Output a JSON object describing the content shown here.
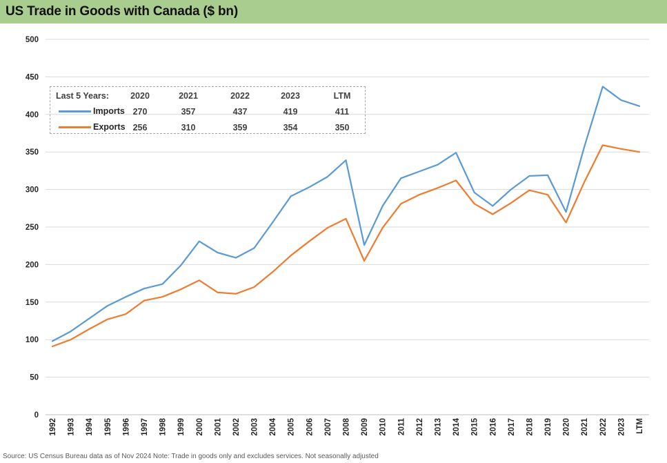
{
  "header": {
    "title": "US Trade in Goods with Canada ($ bn)"
  },
  "footer": {
    "source_note": "Source: US Census Bureau data as of Nov 2024 Note: Trade in goods only and excludes services. Not seasonally adjusted"
  },
  "colors": {
    "header_bg": "#A9CD8E",
    "imports": "#5B9BD5",
    "exports": "#ED7D31",
    "gridline": "#D9D9D9",
    "zero_line": "#BFBFBF",
    "axis_text": "#262626",
    "legend_text": "#3F3F3F"
  },
  "legend": {
    "heading": "Last 5 Years:",
    "columns": [
      "2020",
      "2021",
      "2022",
      "2023",
      "LTM"
    ],
    "rows": [
      {
        "label": "Imports",
        "values": [
          "270",
          "357",
          "437",
          "419",
          "411"
        ]
      },
      {
        "label": "Exports",
        "values": [
          "256",
          "310",
          "359",
          "354",
          "350"
        ]
      }
    ]
  },
  "chart_data": {
    "type": "line",
    "title": "US Trade in Goods with Canada ($ bn)",
    "categories": [
      "1992",
      "1993",
      "1994",
      "1995",
      "1996",
      "1997",
      "1998",
      "1999",
      "2000",
      "2001",
      "2002",
      "2003",
      "2004",
      "2005",
      "2006",
      "2007",
      "2008",
      "2009",
      "2010",
      "2011",
      "2012",
      "2013",
      "2014",
      "2015",
      "2016",
      "2017",
      "2018",
      "2019",
      "2020",
      "2021",
      "2022",
      "2023",
      "LTM"
    ],
    "series": [
      {
        "name": "Imports",
        "color": "#5B9BD5",
        "values": [
          98,
          111,
          128,
          145,
          157,
          168,
          174,
          199,
          231,
          216,
          209,
          222,
          256,
          291,
          303,
          317,
          339,
          226,
          278,
          315,
          324,
          333,
          349,
          296,
          278,
          300,
          318,
          319,
          270,
          357,
          437,
          419,
          411
        ]
      },
      {
        "name": "Exports",
        "color": "#ED7D31",
        "values": [
          91,
          100,
          114,
          127,
          134,
          152,
          157,
          167,
          179,
          163,
          161,
          170,
          190,
          212,
          231,
          249,
          261,
          205,
          249,
          281,
          293,
          302,
          312,
          281,
          267,
          282,
          299,
          293,
          256,
          310,
          359,
          354,
          350
        ]
      }
    ],
    "xlabel": "",
    "ylabel": "",
    "ylim": [
      0,
      500
    ],
    "ytick_step": 50,
    "grid": true,
    "x_label_rotation": -90,
    "legend_position": "inside-top-left"
  }
}
